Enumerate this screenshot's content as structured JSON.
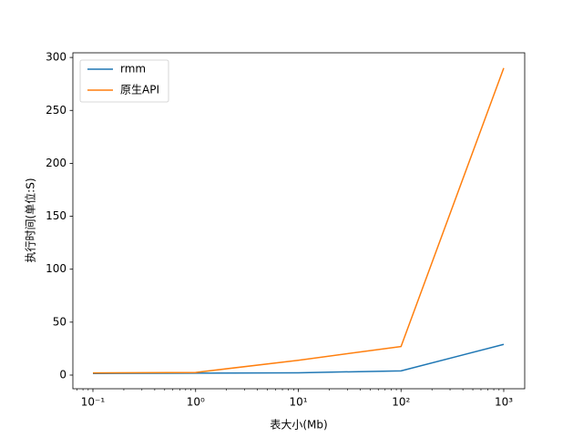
{
  "chart_data": {
    "type": "line",
    "xlabel": "表大小(Mb)",
    "ylabel": "执行时间(单位:S)",
    "x": [
      0.1,
      1,
      10,
      100,
      1000
    ],
    "series": [
      {
        "name": "rmm",
        "color": "#1f77b4",
        "values": [
          1.5,
          1.8,
          2.2,
          4,
          29
        ]
      },
      {
        "name": "原生API",
        "color": "#ff7f0e",
        "values": [
          2,
          2.5,
          14,
          27,
          290
        ]
      }
    ],
    "xscale": "log",
    "xlim": [
      0.0638,
      1600
    ],
    "xticks": [
      {
        "value": 0.1,
        "label": "10⁻¹"
      },
      {
        "value": 1,
        "label": "10⁰"
      },
      {
        "value": 10,
        "label": "10¹"
      },
      {
        "value": 100,
        "label": "10²"
      },
      {
        "value": 1000,
        "label": "10³"
      }
    ],
    "xminorticks": [
      0.07,
      0.08,
      0.09,
      0.2,
      0.3,
      0.4,
      0.5,
      0.6,
      0.7,
      0.8,
      0.9,
      2,
      3,
      4,
      5,
      6,
      7,
      8,
      9,
      20,
      30,
      40,
      50,
      60,
      70,
      80,
      90,
      200,
      300,
      400,
      500,
      600,
      700,
      800,
      900
    ],
    "ylim": [
      -12.9,
      304.4
    ],
    "yticks": [
      0,
      50,
      100,
      150,
      200,
      250,
      300
    ],
    "legend": "upper left"
  }
}
